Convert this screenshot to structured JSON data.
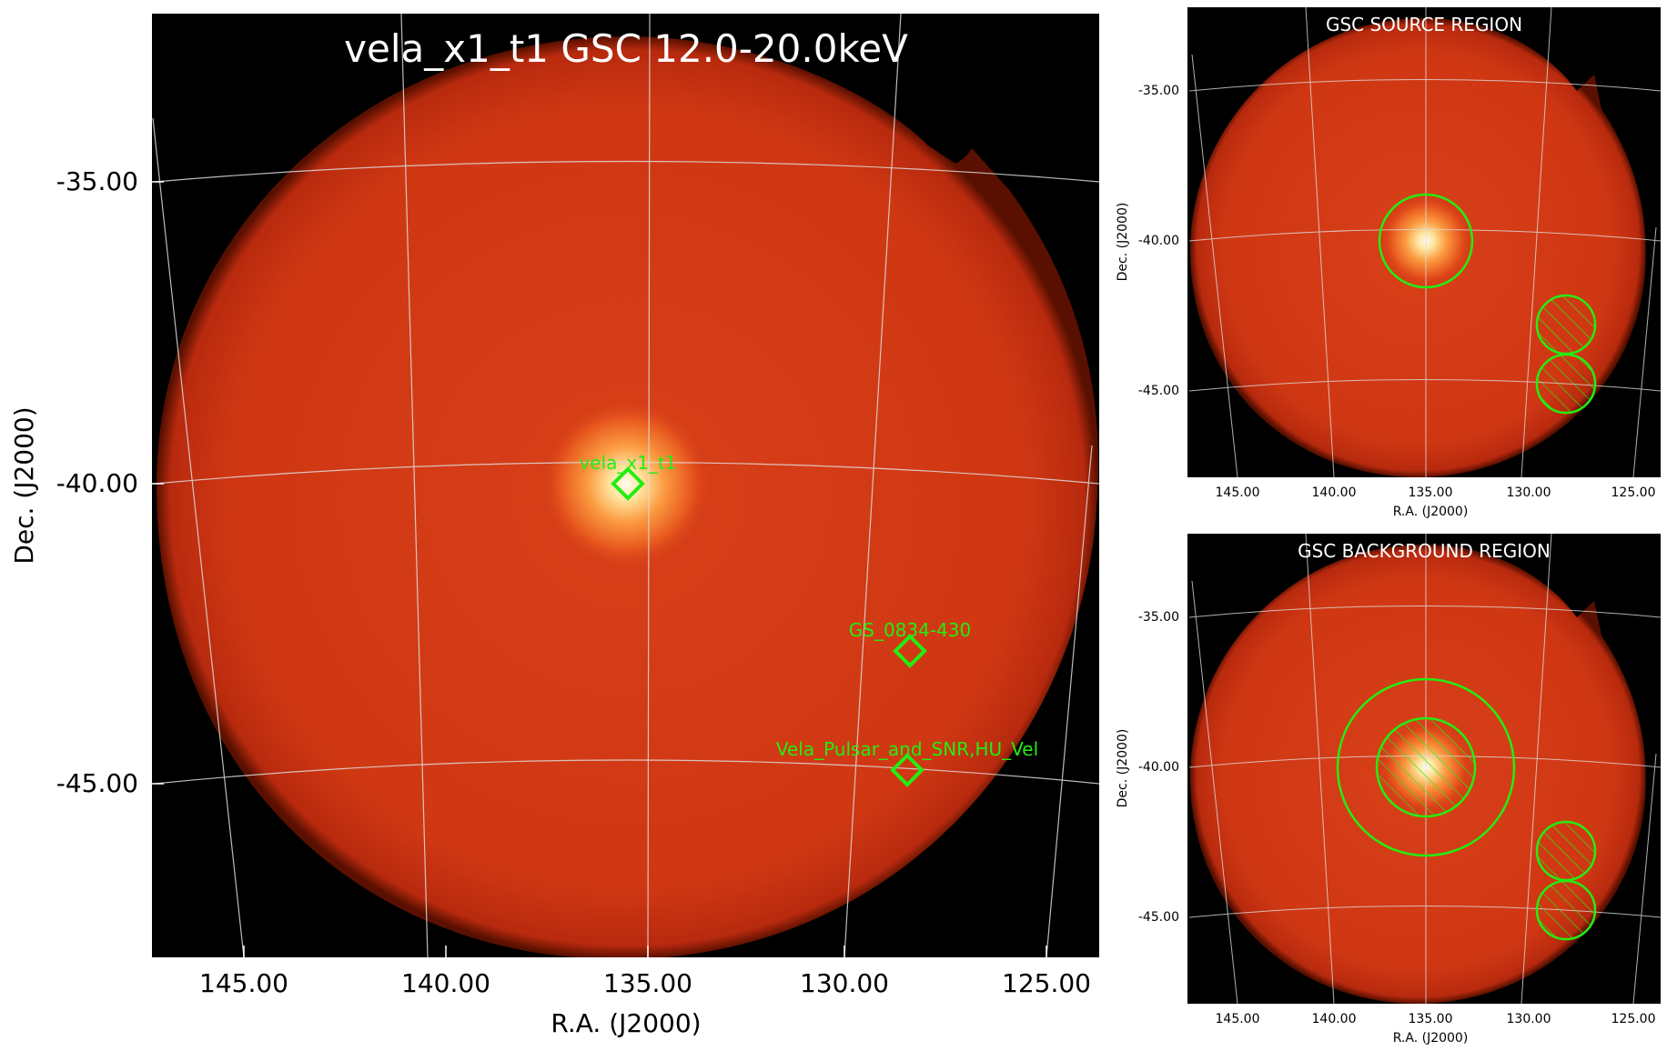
{
  "main": {
    "title": "vela_x1_t1 GSC 12.0-20.0keV",
    "xlabel": "R.A. (J2000)",
    "ylabel": "Dec. (J2000)",
    "x_ticks": [
      "145.00",
      "140.00",
      "135.00",
      "130.00",
      "125.00"
    ],
    "y_ticks": [
      "-35.00",
      "-40.00",
      "-45.00"
    ],
    "sources": [
      {
        "name": "vela_x1_t1",
        "ra": 135.5,
        "dec": -40.0
      },
      {
        "name": "GS_0834-430",
        "ra": 128.4,
        "dec": -42.8
      },
      {
        "name": "Vela_Pulsar_and_SNR,HU_Vel",
        "ra": 128.5,
        "dec": -44.8
      }
    ]
  },
  "source_panel": {
    "title": "GSC SOURCE REGION",
    "xlabel": "R.A. (J2000)",
    "ylabel": "Dec. (J2000)",
    "x_ticks": [
      "145.00",
      "140.00",
      "135.00",
      "130.00",
      "125.00"
    ],
    "y_ticks": [
      "-35.00",
      "-40.00",
      "-45.00"
    ]
  },
  "background_panel": {
    "title": "GSC BACKGROUND REGION",
    "xlabel": "R.A. (J2000)",
    "ylabel": "Dec. (J2000)",
    "x_ticks": [
      "145.00",
      "140.00",
      "135.00",
      "130.00",
      "125.00"
    ],
    "y_ticks": [
      "-35.00",
      "-40.00",
      "-45.00"
    ]
  },
  "colors": {
    "sky": "#d63a12",
    "outside": "#000000",
    "marker": "#22ee11",
    "grid": "#dddddd"
  }
}
